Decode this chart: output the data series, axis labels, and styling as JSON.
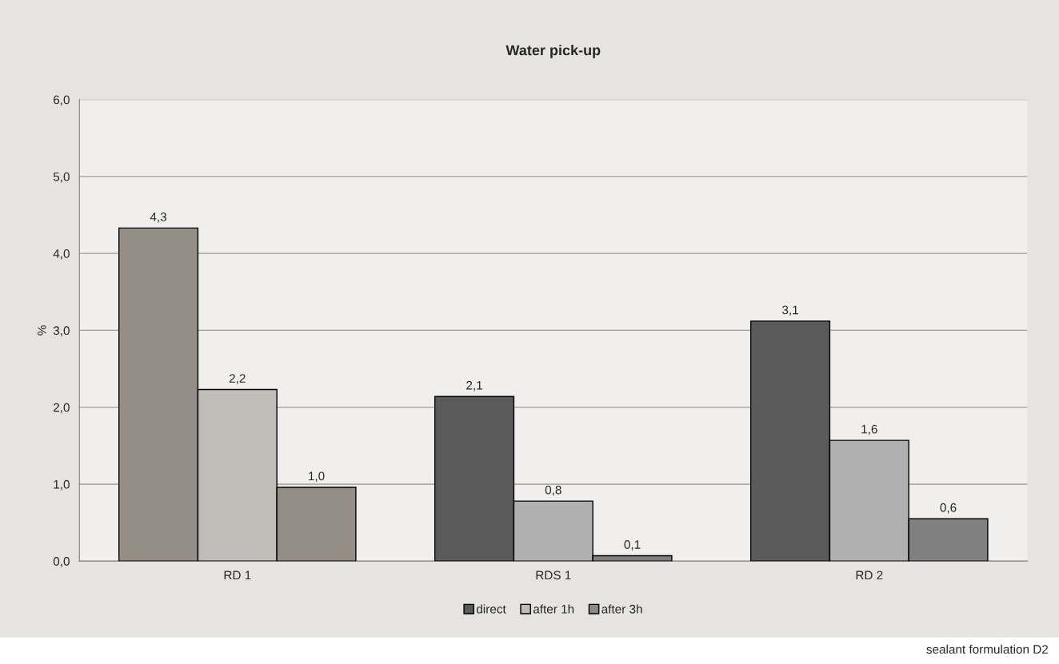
{
  "chart_data": {
    "type": "bar",
    "title": "Water pick-up",
    "ylabel": "%",
    "categories": [
      "RD 1",
      "RDS 1",
      "RD 2"
    ],
    "series": [
      {
        "name": "direct",
        "color": "#5a5a5a",
        "colors": [
          "#958e86",
          "#5a5a5a",
          "#5a5a5a"
        ],
        "values": [
          4.33,
          2.14,
          3.12
        ],
        "value_labels": [
          "4,3",
          "2,1",
          "3,1"
        ]
      },
      {
        "name": "after 1h",
        "color": "#c0bcb7",
        "colors": [
          "#c0bcb7",
          "#b0b0b0",
          "#b0b0b0"
        ],
        "values": [
          2.23,
          0.78,
          1.57
        ],
        "value_labels": [
          "2,2",
          "0,8",
          "1,6"
        ]
      },
      {
        "name": "after 3h",
        "color": "#8a8a8a",
        "colors": [
          "#958e86",
          "#808080",
          "#808080"
        ],
        "values": [
          0.96,
          0.07,
          0.55
        ],
        "value_labels": [
          "1,0",
          "0,1",
          "0,6"
        ]
      }
    ],
    "ylim": [
      0,
      6
    ],
    "yticks": [
      {
        "value": 0,
        "label": "0,0"
      },
      {
        "value": 1,
        "label": "1,0"
      },
      {
        "value": 2,
        "label": "2,0"
      },
      {
        "value": 3,
        "label": "3,0"
      },
      {
        "value": 4,
        "label": "4,0"
      },
      {
        "value": 5,
        "label": "5,0"
      },
      {
        "value": 6,
        "label": "6,0"
      }
    ],
    "grid": "y",
    "legend": "bottom",
    "annotations": [
      "sealant formulation D2"
    ]
  }
}
